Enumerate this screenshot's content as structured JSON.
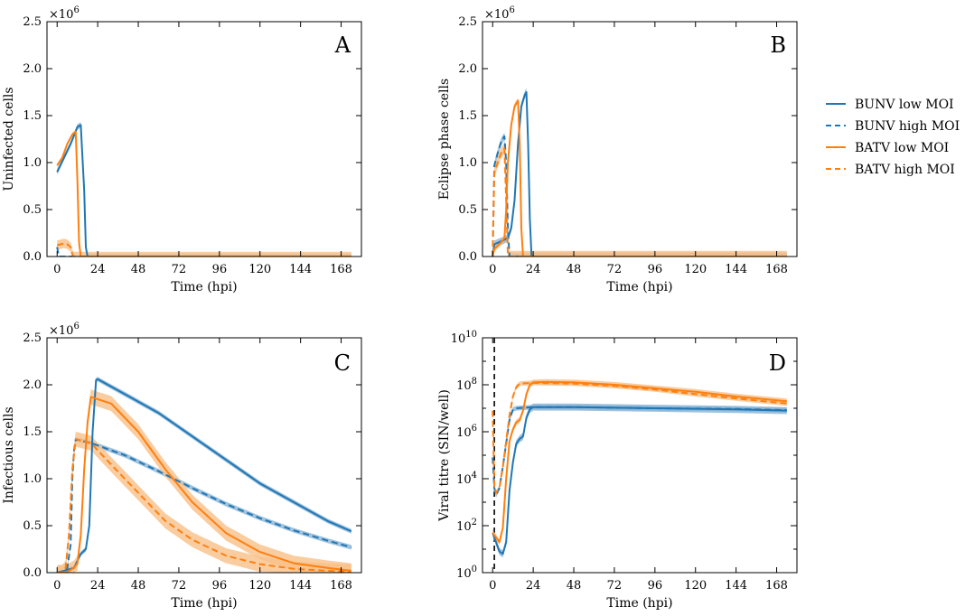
{
  "colors": {
    "BUNV": "#1f77b4",
    "BATV": "#ff7f0e",
    "bunv_band": "#8ab4d6",
    "batv_band": "#f9c08a"
  },
  "legend": {
    "placement": "right",
    "entries": [
      {
        "label": "BUNV low MOI",
        "virus": "BUNV",
        "style": "solid"
      },
      {
        "label": "BUNV high MOI",
        "virus": "BUNV",
        "style": "dashed"
      },
      {
        "label": "BATV low MOI",
        "virus": "BATV",
        "style": "solid"
      },
      {
        "label": "BATV high MOI",
        "virus": "BATV",
        "style": "dashed"
      }
    ]
  },
  "chart_data": [
    {
      "panel": "A",
      "type": "line",
      "xlabel": "Time (hpi)",
      "ylabel": "Uninfected cells",
      "xlim": [
        -6,
        180
      ],
      "ylim": [
        0,
        2.5
      ],
      "y_multiplier": "×10^6",
      "xticks": [
        0,
        24,
        48,
        72,
        96,
        120,
        144,
        168
      ],
      "yticks": [
        "0.0",
        "0.5",
        "1.0",
        "1.5",
        "2.0",
        "2.5"
      ],
      "series": [
        {
          "name": "BUNV low MOI",
          "virus": "BUNV",
          "style": "solid",
          "band": 0.03,
          "x": [
            0,
            4,
            8,
            12,
            14,
            16,
            17,
            18,
            174
          ],
          "y": [
            0.9,
            1.05,
            1.2,
            1.38,
            1.4,
            0.7,
            0.1,
            0,
            0
          ]
        },
        {
          "name": "BUNV high MOI",
          "virus": "BUNV",
          "style": "dashed",
          "band": 0,
          "x": [
            0,
            1,
            174
          ],
          "y": [
            0.1,
            0,
            0
          ]
        },
        {
          "name": "BATV low MOI",
          "virus": "BATV",
          "style": "solid",
          "band": 0.02,
          "x": [
            0,
            3,
            6,
            9,
            11,
            12,
            13,
            14,
            174
          ],
          "y": [
            0.97,
            1.05,
            1.2,
            1.3,
            1.33,
            0.8,
            0.15,
            0,
            0
          ]
        },
        {
          "name": "BATV high MOI",
          "virus": "BATV",
          "style": "dashed",
          "band": 0.05,
          "x": [
            0,
            2,
            4,
            6,
            8,
            9,
            10,
            174
          ],
          "y": [
            0.12,
            0.13,
            0.14,
            0.13,
            0.1,
            0.02,
            0,
            0
          ]
        }
      ]
    },
    {
      "panel": "B",
      "type": "line",
      "xlabel": "Time (hpi)",
      "ylabel": "Eclipse phase cells",
      "xlim": [
        -6,
        180
      ],
      "ylim": [
        0,
        2.5
      ],
      "y_multiplier": "×10^6",
      "xticks": [
        0,
        24,
        48,
        72,
        96,
        120,
        144,
        168
      ],
      "yticks": [
        "0.0",
        "0.5",
        "1.0",
        "1.5",
        "2.0",
        "2.5"
      ],
      "series": [
        {
          "name": "BUNV low MOI",
          "virus": "BUNV",
          "style": "solid",
          "band": 0.04,
          "x": [
            0,
            1,
            6,
            9,
            11,
            13,
            15,
            17,
            19,
            20,
            21,
            22,
            23,
            174
          ],
          "y": [
            0,
            0.13,
            0.17,
            0.2,
            0.3,
            0.6,
            1.2,
            1.6,
            1.72,
            1.75,
            1.2,
            0.4,
            0,
            0
          ]
        },
        {
          "name": "BUNV high MOI",
          "virus": "BUNV",
          "style": "dashed",
          "band": 0.04,
          "x": [
            0,
            1,
            3,
            5,
            7,
            8,
            9,
            10,
            174
          ],
          "y": [
            0,
            0.97,
            1.1,
            1.22,
            1.28,
            1.0,
            0.3,
            0,
            0
          ]
        },
        {
          "name": "BATV low MOI",
          "virus": "BATV",
          "style": "solid",
          "band": 0.03,
          "x": [
            0,
            1,
            5,
            7,
            8,
            9,
            11,
            13,
            15,
            16,
            17,
            18,
            174
          ],
          "y": [
            0,
            0.08,
            0.15,
            0.2,
            0.5,
            1.0,
            1.4,
            1.6,
            1.66,
            1.2,
            0.3,
            0,
            0
          ]
        },
        {
          "name": "BATV high MOI",
          "virus": "BATV",
          "style": "dashed",
          "band": 0.06,
          "x": [
            0,
            1,
            3,
            5,
            7,
            8,
            9,
            174
          ],
          "y": [
            0,
            0.9,
            1.0,
            1.1,
            1.15,
            0.6,
            0,
            0
          ]
        }
      ]
    },
    {
      "panel": "C",
      "type": "line",
      "xlabel": "Time (hpi)",
      "ylabel": "Infectious cells",
      "xlim": [
        -6,
        180
      ],
      "ylim": [
        0,
        2.5
      ],
      "y_multiplier": "×10^6",
      "xticks": [
        0,
        24,
        48,
        72,
        96,
        120,
        144,
        168
      ],
      "yticks": [
        "0.0",
        "0.5",
        "1.0",
        "1.5",
        "2.0",
        "2.5"
      ],
      "series": [
        {
          "name": "BUNV low MOI",
          "virus": "BUNV",
          "style": "solid",
          "band": 0.025,
          "x": [
            0,
            10,
            14,
            17,
            19,
            21,
            23,
            24,
            40,
            60,
            80,
            100,
            120,
            140,
            160,
            174
          ],
          "y": [
            0,
            0.05,
            0.2,
            0.25,
            0.5,
            1.5,
            2.05,
            2.06,
            1.9,
            1.7,
            1.45,
            1.2,
            0.95,
            0.75,
            0.55,
            0.44
          ]
        },
        {
          "name": "BUNV high MOI",
          "virus": "BUNV",
          "style": "dashed",
          "band": 0.025,
          "x": [
            0,
            3,
            6,
            8,
            9,
            10,
            11,
            20,
            40,
            60,
            80,
            100,
            120,
            140,
            160,
            174
          ],
          "y": [
            0,
            0,
            0.05,
            0.3,
            1.0,
            1.3,
            1.42,
            1.38,
            1.25,
            1.08,
            0.9,
            0.73,
            0.58,
            0.45,
            0.34,
            0.27
          ]
        },
        {
          "name": "BATV low MOI",
          "virus": "BATV",
          "style": "solid",
          "band": 0.08,
          "x": [
            0,
            6,
            10,
            12,
            14,
            16,
            18,
            20,
            32,
            48,
            64,
            80,
            100,
            120,
            140,
            160,
            174
          ],
          "y": [
            0,
            0.01,
            0.05,
            0.1,
            0.4,
            1.1,
            1.6,
            1.87,
            1.8,
            1.5,
            1.1,
            0.75,
            0.42,
            0.22,
            0.1,
            0.05,
            0.02
          ]
        },
        {
          "name": "BATV high MOI",
          "virus": "BATV",
          "style": "dashed",
          "band": 0.08,
          "x": [
            0,
            3,
            5,
            7,
            9,
            11,
            20,
            32,
            48,
            64,
            80,
            100,
            120,
            140,
            160,
            174
          ],
          "y": [
            0,
            0,
            0.05,
            0.4,
            1.1,
            1.42,
            1.38,
            1.15,
            0.85,
            0.55,
            0.35,
            0.18,
            0.09,
            0.04,
            0.02,
            0.01
          ]
        }
      ]
    },
    {
      "panel": "D",
      "type": "line",
      "yscale": "log",
      "xlabel": "Time (hpi)",
      "ylabel": "Viral titre (SIN/well)",
      "xlim": [
        -6,
        180
      ],
      "ylim_log10": [
        0,
        10
      ],
      "xticks": [
        0,
        24,
        48,
        72,
        96,
        120,
        144,
        168
      ],
      "yticks_log10": [
        0,
        2,
        4,
        6,
        8,
        10
      ],
      "vline_x": 1,
      "series": [
        {
          "name": "BUNV low MOI",
          "virus": "BUNV",
          "style": "solid",
          "band": 0.15,
          "x": [
            0,
            2,
            4,
            6,
            8,
            10,
            12,
            14,
            16,
            18,
            20,
            22,
            24,
            48,
            96,
            144,
            174
          ],
          "log10_y": [
            1.7,
            1.3,
            0.9,
            0.8,
            1.3,
            3.5,
            4.7,
            5.5,
            5.7,
            5.8,
            6.6,
            6.95,
            7.05,
            7.05,
            7.0,
            6.95,
            6.9
          ]
        },
        {
          "name": "BUNV high MOI",
          "virus": "BUNV",
          "style": "dashed",
          "band": 0.1,
          "x": [
            0,
            1,
            2,
            4,
            6,
            8,
            10,
            12,
            14,
            24,
            48,
            96,
            144,
            174
          ],
          "log10_y": [
            4.9,
            3.6,
            3.3,
            3.6,
            4.5,
            5.5,
            6.5,
            6.95,
            7.0,
            7.05,
            7.05,
            7.0,
            6.97,
            6.92
          ]
        },
        {
          "name": "BATV low MOI",
          "virus": "BATV",
          "style": "solid",
          "band": 0.12,
          "x": [
            0,
            2,
            4,
            6,
            8,
            10,
            12,
            14,
            16,
            18,
            20,
            22,
            24,
            32,
            48,
            72,
            96,
            120,
            144,
            174
          ],
          "log10_y": [
            1.7,
            1.5,
            1.3,
            1.9,
            4.0,
            5.6,
            6.1,
            6.4,
            6.5,
            6.9,
            7.6,
            8.0,
            8.1,
            8.12,
            8.1,
            8.0,
            7.85,
            7.7,
            7.5,
            7.3
          ]
        },
        {
          "name": "BATV high MOI",
          "virus": "BATV",
          "style": "dashed",
          "band": 0.1,
          "x": [
            0,
            1,
            2,
            4,
            6,
            8,
            10,
            12,
            14,
            16,
            24,
            48,
            72,
            96,
            120,
            144,
            174
          ],
          "log10_y": [
            6.9,
            3.7,
            3.4,
            3.6,
            4.5,
            5.6,
            6.7,
            7.5,
            7.9,
            8.05,
            8.08,
            8.05,
            7.95,
            7.8,
            7.6,
            7.42,
            7.2
          ]
        }
      ]
    }
  ]
}
